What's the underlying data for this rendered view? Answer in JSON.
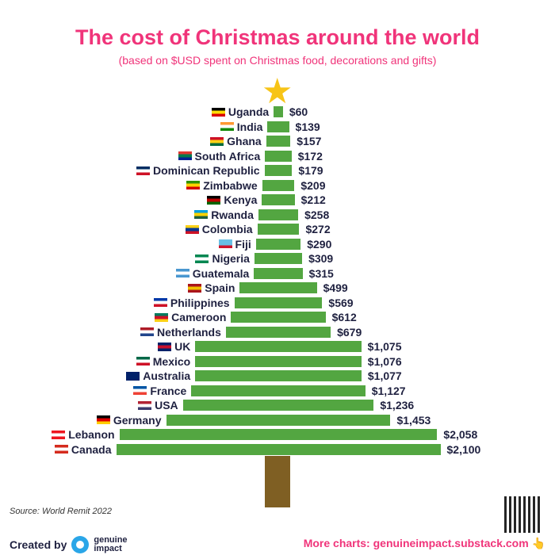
{
  "chart_data": {
    "type": "bar",
    "orientation": "horizontal-centered",
    "title": "The cost of Christmas around the world",
    "subtitle": "(based on $USD spent on Christmas food, decorations and gifts)",
    "categories": [
      "Uganda",
      "India",
      "Ghana",
      "South Africa",
      "Dominican Republic",
      "Zimbabwe",
      "Kenya",
      "Rwanda",
      "Colombia",
      "Fiji",
      "Nigeria",
      "Guatemala",
      "Spain",
      "Philippines",
      "Cameroon",
      "Netherlands",
      "UK",
      "Mexico",
      "Australia",
      "France",
      "USA",
      "Germany",
      "Lebanon",
      "Canada"
    ],
    "values": [
      60,
      139,
      157,
      172,
      179,
      209,
      212,
      258,
      272,
      290,
      309,
      315,
      499,
      569,
      612,
      679,
      1075,
      1076,
      1077,
      1127,
      1236,
      1453,
      2058,
      2100
    ],
    "value_labels": [
      "$60",
      "$139",
      "$157",
      "$172",
      "$179",
      "$209",
      "$212",
      "$258",
      "$272",
      "$290",
      "$309",
      "$315",
      "$499",
      "$569",
      "$612",
      "$679",
      "$1,075",
      "$1,076",
      "$1,077",
      "$1,127",
      "$1,236",
      "$1,453",
      "$2,058",
      "$2,100"
    ],
    "flags": [
      [
        "#000",
        "#fcdc04",
        "#d90000"
      ],
      [
        "#ff9933",
        "#fff",
        "#138808"
      ],
      [
        "#ce1126",
        "#fcd116",
        "#006b3f"
      ],
      [
        "#de3831",
        "#007a4d",
        "#002395"
      ],
      [
        "#002d62",
        "#fff",
        "#ce1126"
      ],
      [
        "#319208",
        "#ffd200",
        "#d40000"
      ],
      [
        "#000",
        "#bb0000",
        "#006600"
      ],
      [
        "#00a1de",
        "#fad201",
        "#20603d"
      ],
      [
        "#fcd116",
        "#003893",
        "#ce1126"
      ],
      [
        "#68bfe5",
        "#68bfe5",
        "#cf142b"
      ],
      [
        "#008751",
        "#fff",
        "#008751"
      ],
      [
        "#4997d0",
        "#fff",
        "#4997d0"
      ],
      [
        "#aa151b",
        "#f1bf00",
        "#aa151b"
      ],
      [
        "#0038a8",
        "#fff",
        "#ce1126"
      ],
      [
        "#007a5e",
        "#ce1126",
        "#fcd116"
      ],
      [
        "#ae1c28",
        "#fff",
        "#21468b"
      ],
      [
        "#012169",
        "#c8102e",
        "#012169"
      ],
      [
        "#006847",
        "#fff",
        "#ce1126"
      ],
      [
        "#012169",
        "#012169",
        "#012169"
      ],
      [
        "#0055a4",
        "#fff",
        "#ef4135"
      ],
      [
        "#b22234",
        "#fff",
        "#3c3b6e"
      ],
      [
        "#000",
        "#dd0000",
        "#ffce00"
      ],
      [
        "#ee161f",
        "#fff",
        "#ee161f"
      ],
      [
        "#d52b1e",
        "#fff",
        "#d52b1e"
      ]
    ],
    "bar_color": "#53a641",
    "xlim": [
      0,
      2100
    ]
  },
  "source": "Source: World Remit 2022",
  "footer": {
    "created_by": "Created by",
    "brand_line1": "genuine",
    "brand_line2": "impact",
    "more": "More charts: genuineimpact.substack.com 👆"
  }
}
